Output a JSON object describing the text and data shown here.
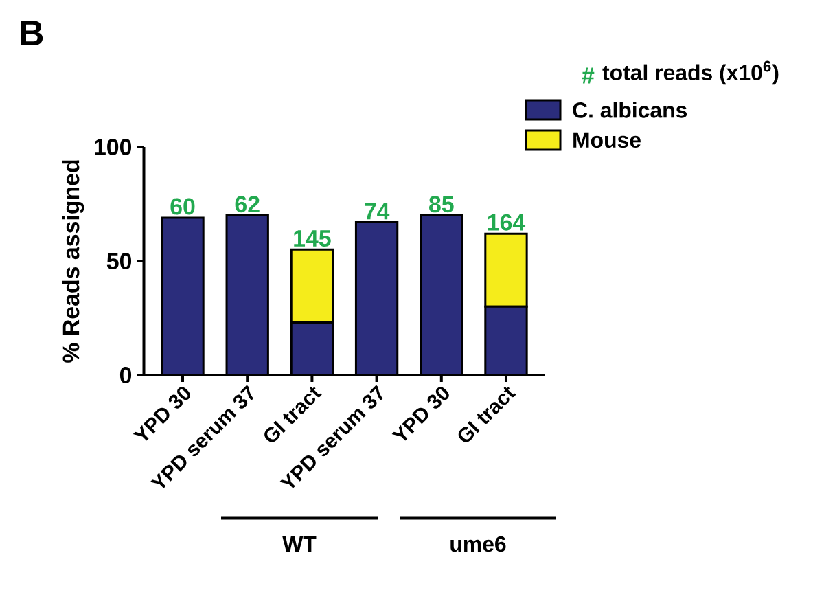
{
  "chart_data": {
    "type": "bar",
    "stacked": true,
    "ylabel": "% Reads assigned",
    "legend_title": "total reads (x10$^{6}$)",
    "legend": "top right",
    "categories": [
      "YPD 30",
      "YPD serum 37",
      "GI tract",
      "YPD serum 37",
      "YPD 30",
      "GI tract"
    ],
    "ylim": [
      0,
      100
    ],
    "yticks": [
      0,
      50,
      100
    ],
    "series": [
      {
        "name": "C. albicans",
        "color": "#2b2d7c",
        "values": [
          69,
          70,
          23,
          67,
          70,
          30
        ]
      },
      {
        "name": "Mouse",
        "color": "#f5ec1b",
        "values": [
          0,
          0,
          32,
          0,
          0,
          32
        ]
      }
    ],
    "annotations": [
      "B",
      "#",
      "WT",
      "ume6",
      "60",
      "62",
      "145",
      "74",
      "85",
      "164"
    ]
  }
}
